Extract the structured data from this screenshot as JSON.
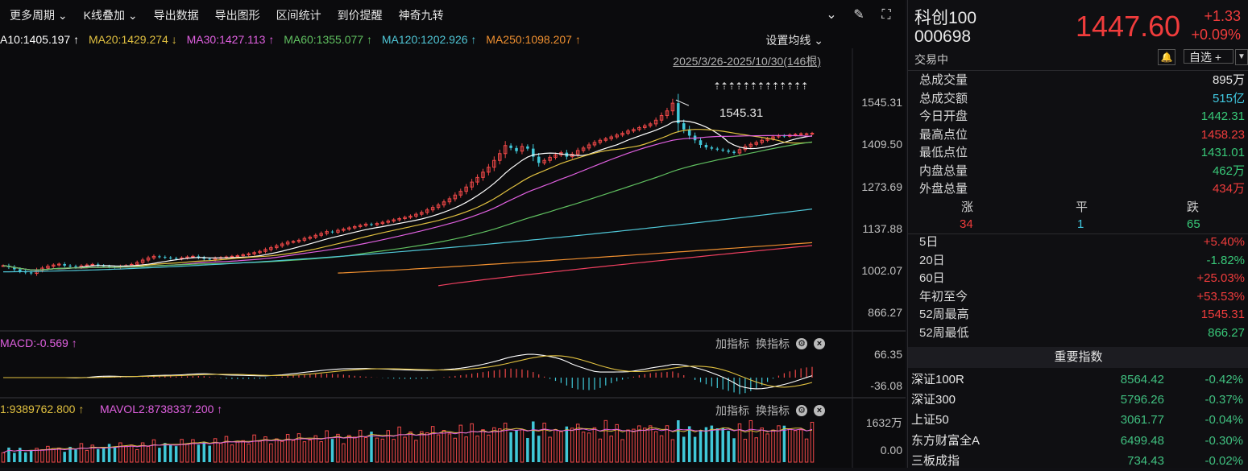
{
  "toolbar": {
    "items": [
      "更多周期 ⌄",
      "K线叠加 ⌄",
      "导出数据",
      "导出图形",
      "区间统计",
      "到价提醒",
      "神奇九转"
    ]
  },
  "ma_legend": [
    {
      "label": "A10:1405.197 ↑",
      "color": "#ffffff"
    },
    {
      "label": "MA20:1429.274 ↓",
      "color": "#e0c040"
    },
    {
      "label": "MA30:1427.113 ↑",
      "color": "#e060e0"
    },
    {
      "label": "MA60:1355.077 ↑",
      "color": "#60c060"
    },
    {
      "label": "MA120:1202.926 ↑",
      "color": "#50c8d8"
    },
    {
      "label": "MA250:1098.207 ↑",
      "color": "#f09030"
    }
  ],
  "set_ma": "设置均线 ⌄",
  "range": "2025/3/26-2025/10/30(146根)",
  "arrows": "⇡⇡⇡⇡⇡⇡⇡⇡⇡⇡⇡⇡⇡",
  "peak_label": "1545.31",
  "macd": {
    "title": "MACD:-0.569 ↑",
    "ymax": "66.35",
    "ymin": "-36.08"
  },
  "vol": {
    "title1": "1:9389762.800 ↑",
    "title2": "MAVOL2:8738337.200 ↑",
    "ymax": "1632万",
    "ymin": "0.00"
  },
  "panel_buttons": {
    "add": "加指标",
    "swap": "换指标"
  },
  "quote": {
    "name": "科创100",
    "code": "000698",
    "status": "交易中",
    "price": "1447.60",
    "change": "+1.33",
    "change_pct": "+0.09%",
    "watch": "自选 +"
  },
  "stats": [
    {
      "label": "总成交量",
      "value": "895万",
      "color": "white"
    },
    {
      "label": "总成交额",
      "value": "515亿",
      "color": "cyan"
    },
    {
      "label": "今日开盘",
      "value": "1442.31",
      "color": "green"
    },
    {
      "label": "最高点位",
      "value": "1458.23",
      "color": "red"
    },
    {
      "label": "最低点位",
      "value": "1431.01",
      "color": "green"
    },
    {
      "label": "内盘总量",
      "value": "462万",
      "color": "green"
    },
    {
      "label": "外盘总量",
      "value": "434万",
      "color": "red"
    }
  ],
  "breadth": {
    "up_label": "涨",
    "flat_label": "平",
    "down_label": "跌",
    "up": "34",
    "flat": "1",
    "down": "65"
  },
  "perf": [
    {
      "label": "5日",
      "value": "+5.40%",
      "color": "red"
    },
    {
      "label": "20日",
      "value": "-1.82%",
      "color": "green"
    },
    {
      "label": "60日",
      "value": "+25.03%",
      "color": "red"
    },
    {
      "label": "年初至今",
      "value": "+53.53%",
      "color": "red"
    },
    {
      "label": "52周最高",
      "value": "1545.31",
      "color": "red"
    },
    {
      "label": "52周最低",
      "value": "866.27",
      "color": "green"
    }
  ],
  "indices_title": "重要指数",
  "indices": [
    {
      "name": "深证100R",
      "price": "8564.42",
      "change": "-0.42%"
    },
    {
      "name": "深证300",
      "price": "5796.26",
      "change": "-0.37%"
    },
    {
      "name": "上证50",
      "price": "3061.77",
      "change": "-0.04%"
    },
    {
      "name": "东方财富全A",
      "price": "6499.48",
      "change": "-0.30%"
    },
    {
      "name": "三板成指",
      "price": "734.43",
      "change": "-0.02%"
    }
  ],
  "chart_data": {
    "type": "candlestick",
    "period": "2025/3/26-2025/10/30",
    "bars": 146,
    "y_ticks": [
      "1545.31",
      "1409.50",
      "1273.69",
      "1137.88",
      "1002.07",
      "866.27"
    ],
    "ylim": [
      866.27,
      1545.31
    ],
    "close_approx": [
      1020,
      1015,
      1008,
      1002,
      998,
      995,
      1005,
      1012,
      1018,
      1022,
      1025,
      1020,
      1018,
      1015,
      1019,
      1022,
      1024,
      1020,
      1018,
      1016,
      1015,
      1018,
      1020,
      1024,
      1030,
      1038,
      1045,
      1050,
      1048,
      1046,
      1044,
      1042,
      1045,
      1048,
      1050,
      1046,
      1042,
      1040,
      1044,
      1046,
      1048,
      1050,
      1052,
      1055,
      1058,
      1062,
      1066,
      1072,
      1078,
      1084,
      1090,
      1096,
      1098,
      1102,
      1108,
      1112,
      1118,
      1124,
      1130,
      1128,
      1134,
      1138,
      1142,
      1146,
      1150,
      1154,
      1152,
      1156,
      1160,
      1164,
      1168,
      1172,
      1176,
      1180,
      1186,
      1192,
      1200,
      1208,
      1216,
      1226,
      1236,
      1248,
      1260,
      1274,
      1290,
      1305,
      1322,
      1338,
      1360,
      1382,
      1408,
      1400,
      1390,
      1405,
      1398,
      1372,
      1352,
      1360,
      1370,
      1378,
      1385,
      1372,
      1380,
      1392,
      1400,
      1410,
      1418,
      1425,
      1430,
      1436,
      1442,
      1448,
      1455,
      1460,
      1466,
      1472,
      1478,
      1490,
      1505,
      1520,
      1545,
      1480,
      1460,
      1440,
      1425,
      1410,
      1402,
      1398,
      1395,
      1392,
      1388,
      1384,
      1395,
      1405,
      1412,
      1418,
      1425,
      1430,
      1436,
      1440,
      1438,
      1442,
      1444,
      1446,
      1446,
      1447.6
    ],
    "ma": [
      {
        "name": "MA10",
        "value": 1405.197
      },
      {
        "name": "MA20",
        "value": 1429.274
      },
      {
        "name": "MA30",
        "value": 1427.113
      },
      {
        "name": "MA60",
        "value": 1355.077
      },
      {
        "name": "MA120",
        "value": 1202.926
      },
      {
        "name": "MA250",
        "value": 1098.207
      }
    ],
    "macd_range": [
      -36.08,
      66.35
    ],
    "volume_range": [
      0,
      1632
    ]
  }
}
